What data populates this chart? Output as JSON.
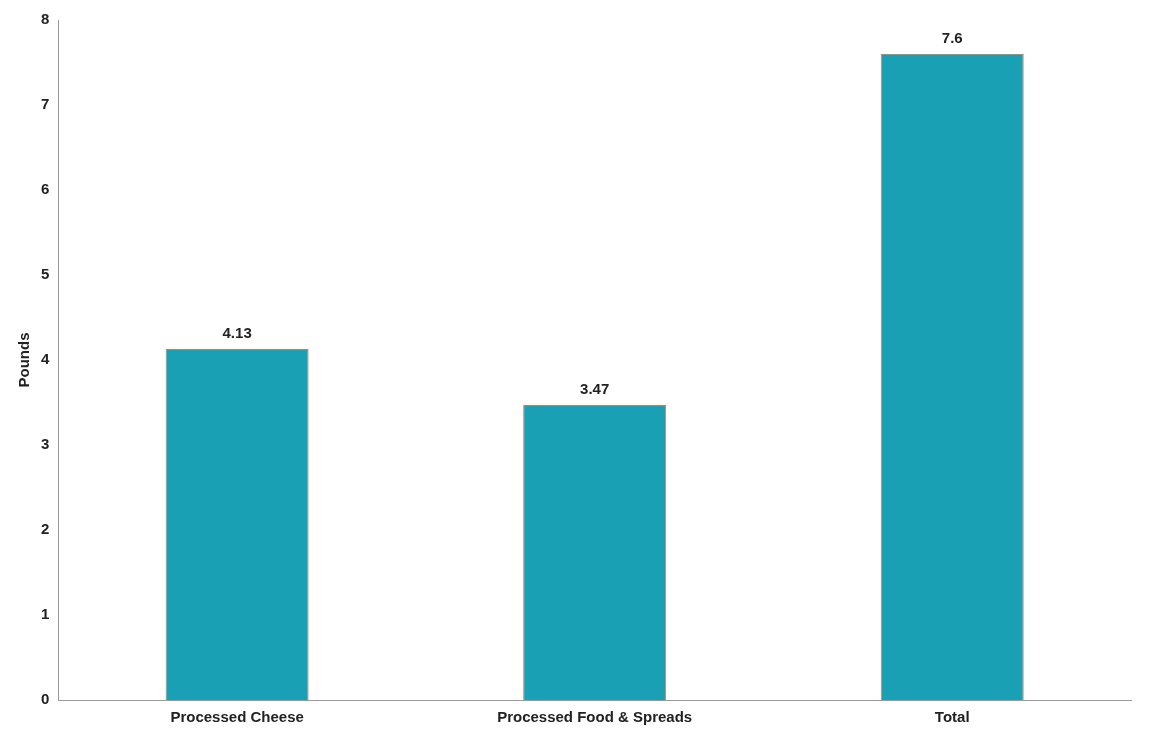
{
  "chart_data": {
    "type": "bar",
    "ylabel": "Pounds",
    "categories": [
      "Processed Cheese",
      "Processed Food & Spreads",
      "Total"
    ],
    "values": [
      4.13,
      3.47,
      7.6
    ],
    "color": "#1aa0b4",
    "ylim": [
      0,
      8
    ],
    "yticks": [
      0,
      1,
      2,
      3,
      4,
      5,
      6,
      7,
      8
    ],
    "grid": false,
    "legend": false,
    "data_labels": true
  }
}
